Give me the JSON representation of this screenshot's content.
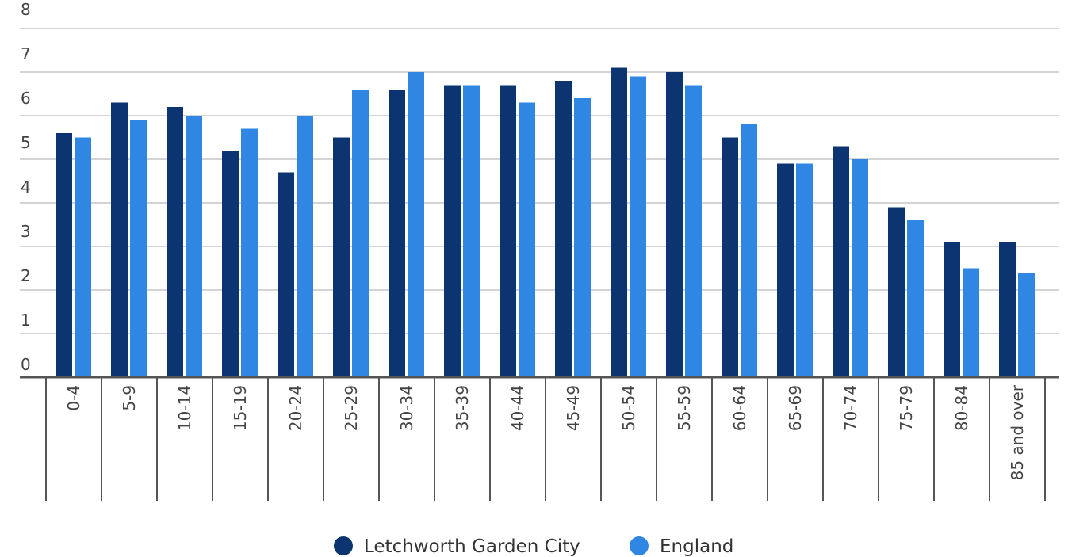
{
  "chart_data": {
    "type": "bar",
    "title": "",
    "xlabel": "",
    "ylabel": "",
    "categories": [
      "0-4",
      "5-9",
      "10-14",
      "15-19",
      "20-24",
      "25-29",
      "30-34",
      "35-39",
      "40-44",
      "45-49",
      "50-54",
      "55-59",
      "60-64",
      "65-69",
      "70-74",
      "75-79",
      "80-84",
      "85 and over"
    ],
    "series": [
      {
        "name": "Letchworth Garden City",
        "color": "#0b3470",
        "values": [
          5.6,
          6.3,
          6.2,
          5.2,
          4.7,
          5.5,
          6.6,
          6.7,
          6.7,
          6.8,
          7.1,
          7.0,
          5.5,
          4.9,
          5.3,
          3.9,
          3.1,
          3.1
        ]
      },
      {
        "name": "England",
        "color": "#2f86e3",
        "values": [
          5.5,
          5.9,
          6.0,
          5.7,
          6.0,
          6.6,
          7.0,
          6.7,
          6.3,
          6.4,
          6.9,
          6.7,
          5.8,
          4.9,
          5.0,
          3.6,
          2.5,
          2.4
        ]
      }
    ],
    "ylim": [
      0,
      8
    ],
    "yticks": [
      "0",
      "1",
      "2",
      "3",
      "4",
      "5",
      "6",
      "7",
      "8"
    ],
    "grid": true,
    "legend_position": "bottom-center"
  }
}
